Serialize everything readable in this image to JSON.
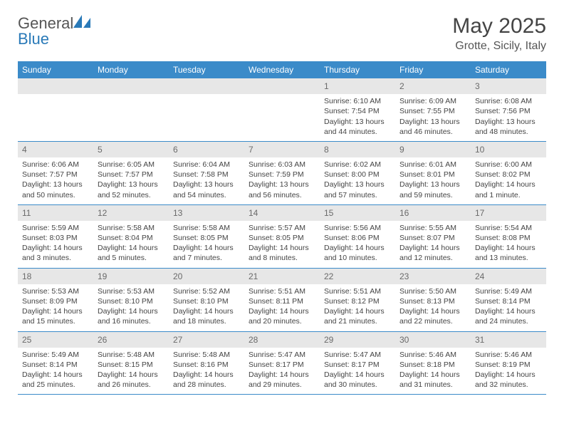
{
  "brand": {
    "general": "General",
    "blue": "Blue"
  },
  "title": "May 2025",
  "location": "Grotte, Sicily, Italy",
  "colors": {
    "header_bg": "#3b8bc9",
    "header_text": "#ffffff",
    "daynum_bg": "#e7e7e7",
    "daynum_text": "#6a6a6a",
    "border": "#3b8bc9",
    "logo_blue": "#2a7ab8",
    "body_text": "#444444"
  },
  "weekdays": [
    "Sunday",
    "Monday",
    "Tuesday",
    "Wednesday",
    "Thursday",
    "Friday",
    "Saturday"
  ],
  "weeks": [
    [
      null,
      null,
      null,
      null,
      {
        "n": "1",
        "sunrise": "Sunrise: 6:10 AM",
        "sunset": "Sunset: 7:54 PM",
        "daylight1": "Daylight: 13 hours",
        "daylight2": "and 44 minutes."
      },
      {
        "n": "2",
        "sunrise": "Sunrise: 6:09 AM",
        "sunset": "Sunset: 7:55 PM",
        "daylight1": "Daylight: 13 hours",
        "daylight2": "and 46 minutes."
      },
      {
        "n": "3",
        "sunrise": "Sunrise: 6:08 AM",
        "sunset": "Sunset: 7:56 PM",
        "daylight1": "Daylight: 13 hours",
        "daylight2": "and 48 minutes."
      }
    ],
    [
      {
        "n": "4",
        "sunrise": "Sunrise: 6:06 AM",
        "sunset": "Sunset: 7:57 PM",
        "daylight1": "Daylight: 13 hours",
        "daylight2": "and 50 minutes."
      },
      {
        "n": "5",
        "sunrise": "Sunrise: 6:05 AM",
        "sunset": "Sunset: 7:57 PM",
        "daylight1": "Daylight: 13 hours",
        "daylight2": "and 52 minutes."
      },
      {
        "n": "6",
        "sunrise": "Sunrise: 6:04 AM",
        "sunset": "Sunset: 7:58 PM",
        "daylight1": "Daylight: 13 hours",
        "daylight2": "and 54 minutes."
      },
      {
        "n": "7",
        "sunrise": "Sunrise: 6:03 AM",
        "sunset": "Sunset: 7:59 PM",
        "daylight1": "Daylight: 13 hours",
        "daylight2": "and 56 minutes."
      },
      {
        "n": "8",
        "sunrise": "Sunrise: 6:02 AM",
        "sunset": "Sunset: 8:00 PM",
        "daylight1": "Daylight: 13 hours",
        "daylight2": "and 57 minutes."
      },
      {
        "n": "9",
        "sunrise": "Sunrise: 6:01 AM",
        "sunset": "Sunset: 8:01 PM",
        "daylight1": "Daylight: 13 hours",
        "daylight2": "and 59 minutes."
      },
      {
        "n": "10",
        "sunrise": "Sunrise: 6:00 AM",
        "sunset": "Sunset: 8:02 PM",
        "daylight1": "Daylight: 14 hours",
        "daylight2": "and 1 minute."
      }
    ],
    [
      {
        "n": "11",
        "sunrise": "Sunrise: 5:59 AM",
        "sunset": "Sunset: 8:03 PM",
        "daylight1": "Daylight: 14 hours",
        "daylight2": "and 3 minutes."
      },
      {
        "n": "12",
        "sunrise": "Sunrise: 5:58 AM",
        "sunset": "Sunset: 8:04 PM",
        "daylight1": "Daylight: 14 hours",
        "daylight2": "and 5 minutes."
      },
      {
        "n": "13",
        "sunrise": "Sunrise: 5:58 AM",
        "sunset": "Sunset: 8:05 PM",
        "daylight1": "Daylight: 14 hours",
        "daylight2": "and 7 minutes."
      },
      {
        "n": "14",
        "sunrise": "Sunrise: 5:57 AM",
        "sunset": "Sunset: 8:05 PM",
        "daylight1": "Daylight: 14 hours",
        "daylight2": "and 8 minutes."
      },
      {
        "n": "15",
        "sunrise": "Sunrise: 5:56 AM",
        "sunset": "Sunset: 8:06 PM",
        "daylight1": "Daylight: 14 hours",
        "daylight2": "and 10 minutes."
      },
      {
        "n": "16",
        "sunrise": "Sunrise: 5:55 AM",
        "sunset": "Sunset: 8:07 PM",
        "daylight1": "Daylight: 14 hours",
        "daylight2": "and 12 minutes."
      },
      {
        "n": "17",
        "sunrise": "Sunrise: 5:54 AM",
        "sunset": "Sunset: 8:08 PM",
        "daylight1": "Daylight: 14 hours",
        "daylight2": "and 13 minutes."
      }
    ],
    [
      {
        "n": "18",
        "sunrise": "Sunrise: 5:53 AM",
        "sunset": "Sunset: 8:09 PM",
        "daylight1": "Daylight: 14 hours",
        "daylight2": "and 15 minutes."
      },
      {
        "n": "19",
        "sunrise": "Sunrise: 5:53 AM",
        "sunset": "Sunset: 8:10 PM",
        "daylight1": "Daylight: 14 hours",
        "daylight2": "and 16 minutes."
      },
      {
        "n": "20",
        "sunrise": "Sunrise: 5:52 AM",
        "sunset": "Sunset: 8:10 PM",
        "daylight1": "Daylight: 14 hours",
        "daylight2": "and 18 minutes."
      },
      {
        "n": "21",
        "sunrise": "Sunrise: 5:51 AM",
        "sunset": "Sunset: 8:11 PM",
        "daylight1": "Daylight: 14 hours",
        "daylight2": "and 20 minutes."
      },
      {
        "n": "22",
        "sunrise": "Sunrise: 5:51 AM",
        "sunset": "Sunset: 8:12 PM",
        "daylight1": "Daylight: 14 hours",
        "daylight2": "and 21 minutes."
      },
      {
        "n": "23",
        "sunrise": "Sunrise: 5:50 AM",
        "sunset": "Sunset: 8:13 PM",
        "daylight1": "Daylight: 14 hours",
        "daylight2": "and 22 minutes."
      },
      {
        "n": "24",
        "sunrise": "Sunrise: 5:49 AM",
        "sunset": "Sunset: 8:14 PM",
        "daylight1": "Daylight: 14 hours",
        "daylight2": "and 24 minutes."
      }
    ],
    [
      {
        "n": "25",
        "sunrise": "Sunrise: 5:49 AM",
        "sunset": "Sunset: 8:14 PM",
        "daylight1": "Daylight: 14 hours",
        "daylight2": "and 25 minutes."
      },
      {
        "n": "26",
        "sunrise": "Sunrise: 5:48 AM",
        "sunset": "Sunset: 8:15 PM",
        "daylight1": "Daylight: 14 hours",
        "daylight2": "and 26 minutes."
      },
      {
        "n": "27",
        "sunrise": "Sunrise: 5:48 AM",
        "sunset": "Sunset: 8:16 PM",
        "daylight1": "Daylight: 14 hours",
        "daylight2": "and 28 minutes."
      },
      {
        "n": "28",
        "sunrise": "Sunrise: 5:47 AM",
        "sunset": "Sunset: 8:17 PM",
        "daylight1": "Daylight: 14 hours",
        "daylight2": "and 29 minutes."
      },
      {
        "n": "29",
        "sunrise": "Sunrise: 5:47 AM",
        "sunset": "Sunset: 8:17 PM",
        "daylight1": "Daylight: 14 hours",
        "daylight2": "and 30 minutes."
      },
      {
        "n": "30",
        "sunrise": "Sunrise: 5:46 AM",
        "sunset": "Sunset: 8:18 PM",
        "daylight1": "Daylight: 14 hours",
        "daylight2": "and 31 minutes."
      },
      {
        "n": "31",
        "sunrise": "Sunrise: 5:46 AM",
        "sunset": "Sunset: 8:19 PM",
        "daylight1": "Daylight: 14 hours",
        "daylight2": "and 32 minutes."
      }
    ]
  ]
}
